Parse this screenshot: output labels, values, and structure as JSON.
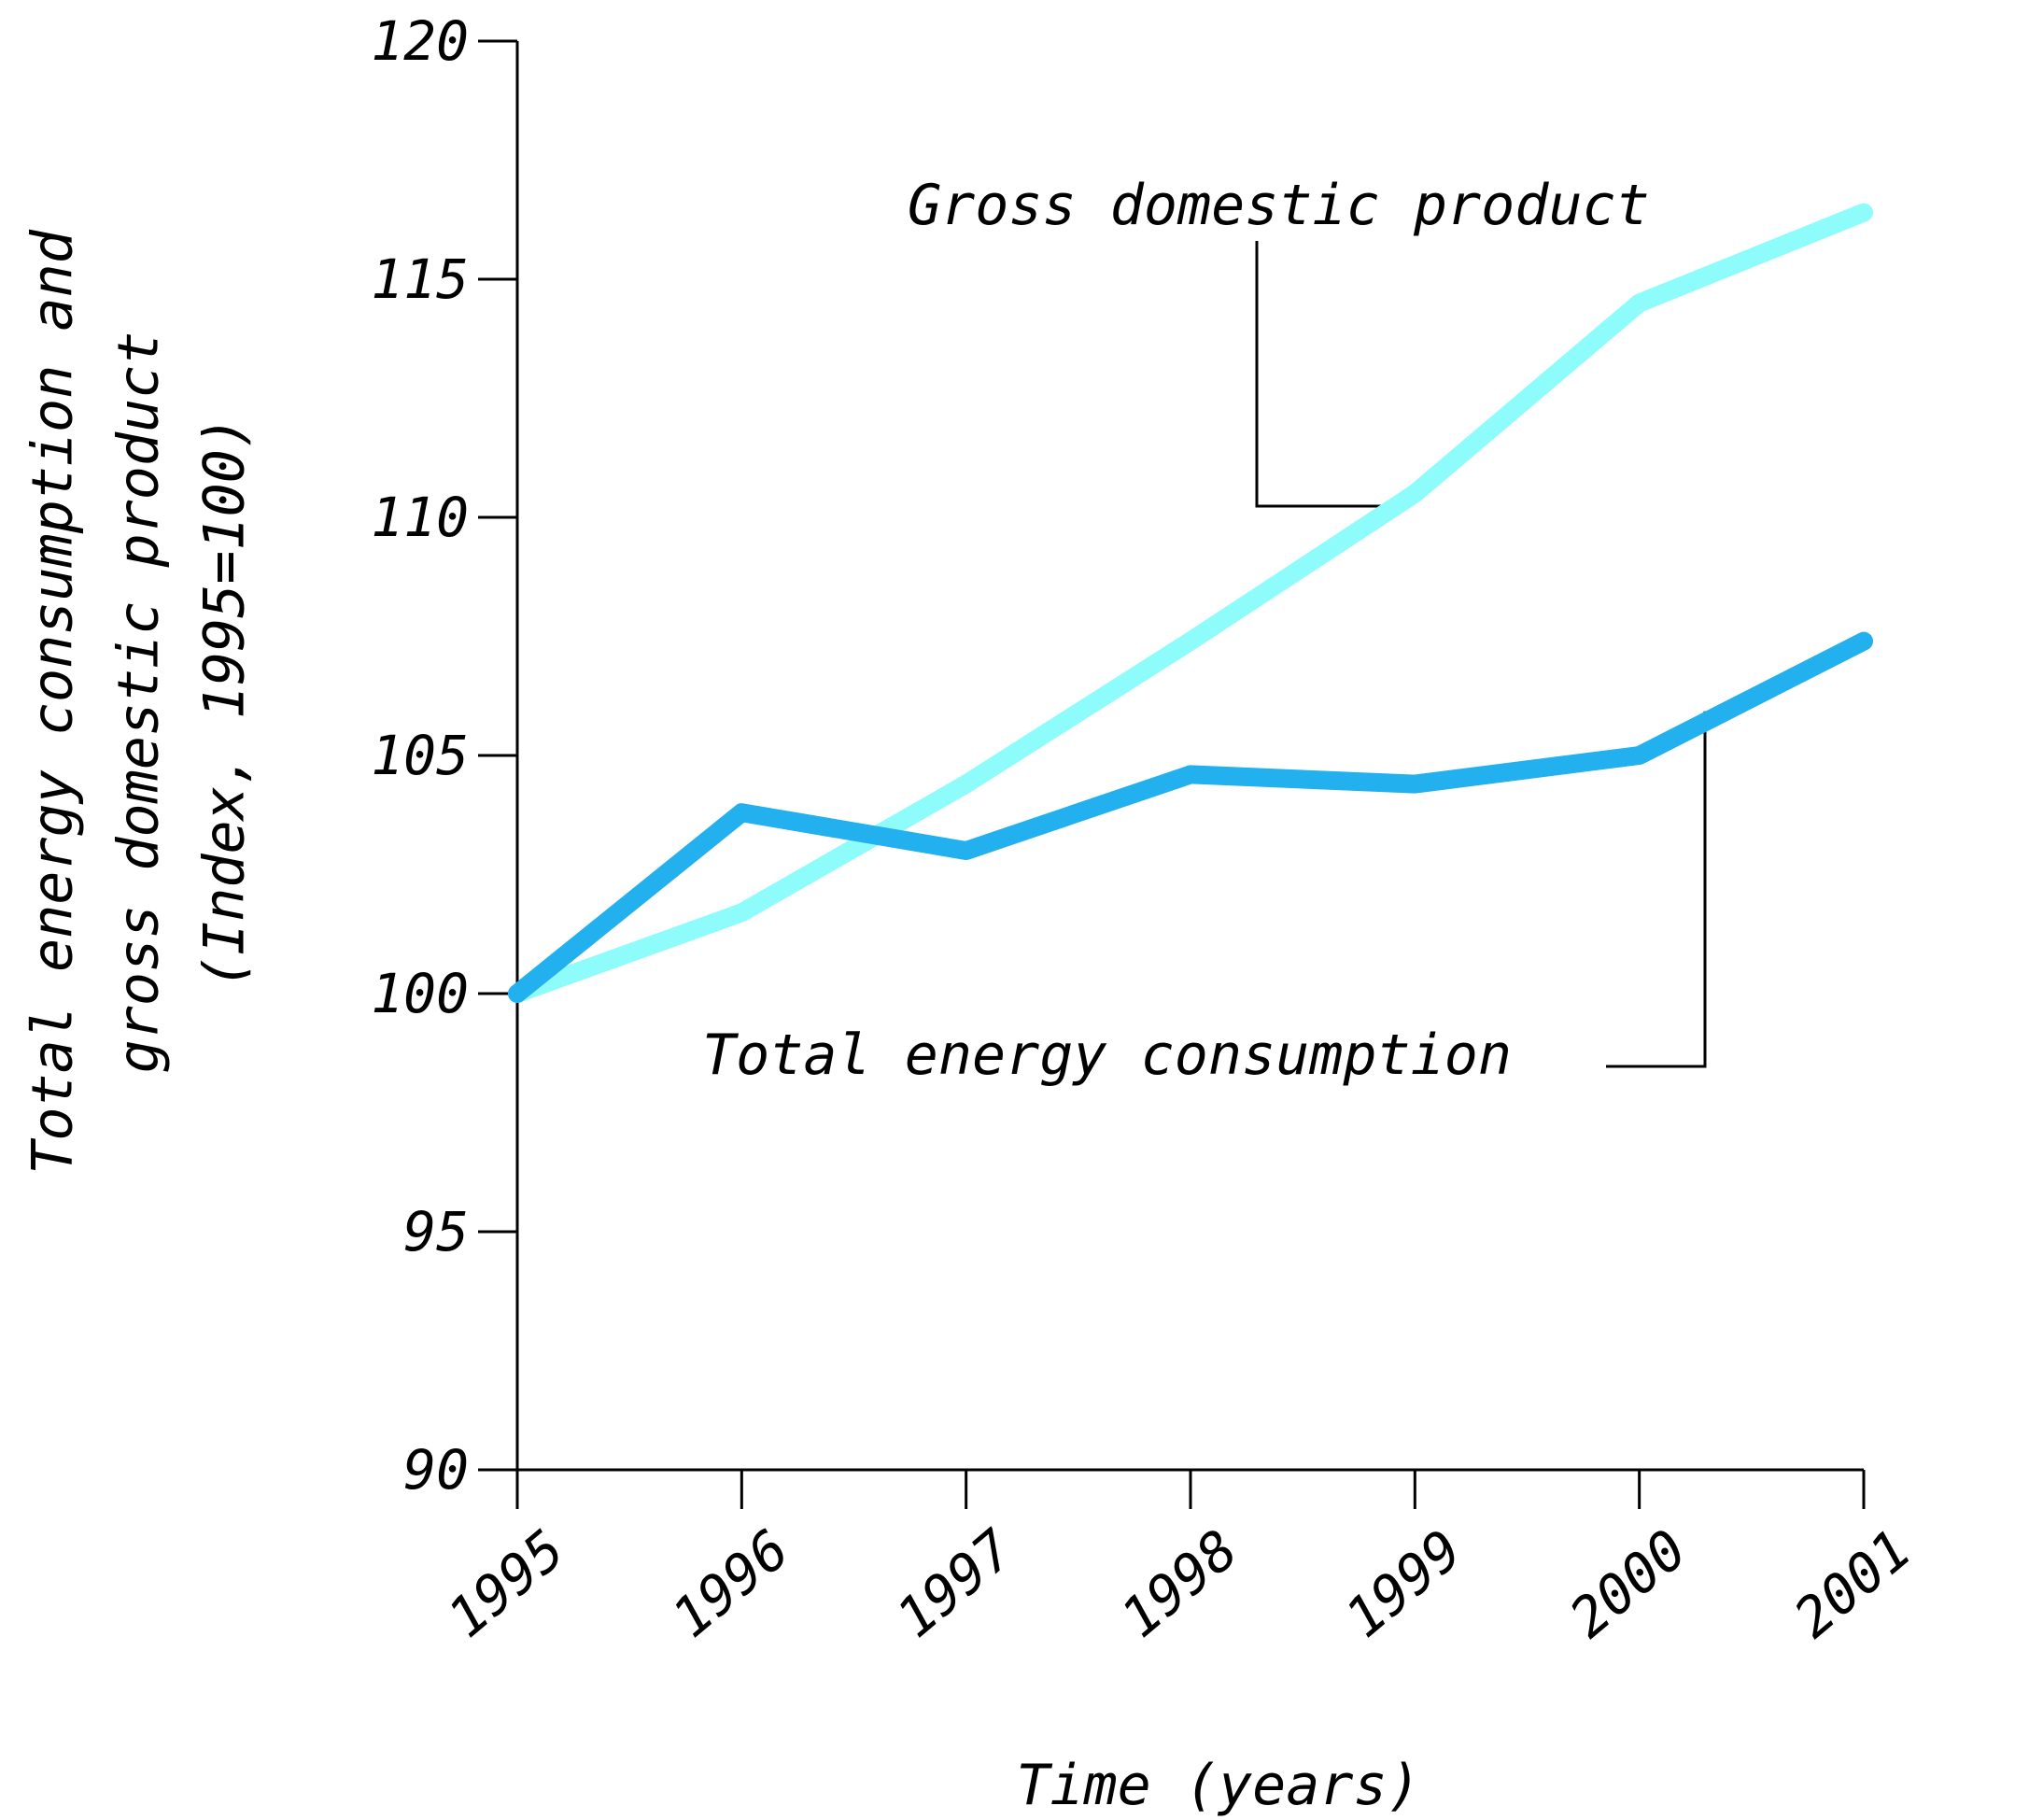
{
  "chart_data": {
    "type": "line",
    "title": "",
    "xlabel": "Time (years)",
    "ylabel_lines": [
      "Total energy consumption and",
      "gross domestic product",
      "(Index, 1995=100)"
    ],
    "x": [
      "1995",
      "1996",
      "1997",
      "1998",
      "1999",
      "2000",
      "2001"
    ],
    "ylim": [
      90,
      120
    ],
    "yticks": [
      "90",
      "95",
      "100",
      "105",
      "110",
      "115",
      "120"
    ],
    "grid": false,
    "series": [
      {
        "name": "Gross domestic product",
        "color": "#8ffcfc",
        "values": [
          100.0,
          101.7,
          104.4,
          107.4,
          110.5,
          114.5,
          116.4
        ]
      },
      {
        "name": "Total energy consumption",
        "color": "#22b0ee",
        "values": [
          100.0,
          103.8,
          103.0,
          104.6,
          104.4,
          105.0,
          107.4
        ]
      }
    ]
  }
}
